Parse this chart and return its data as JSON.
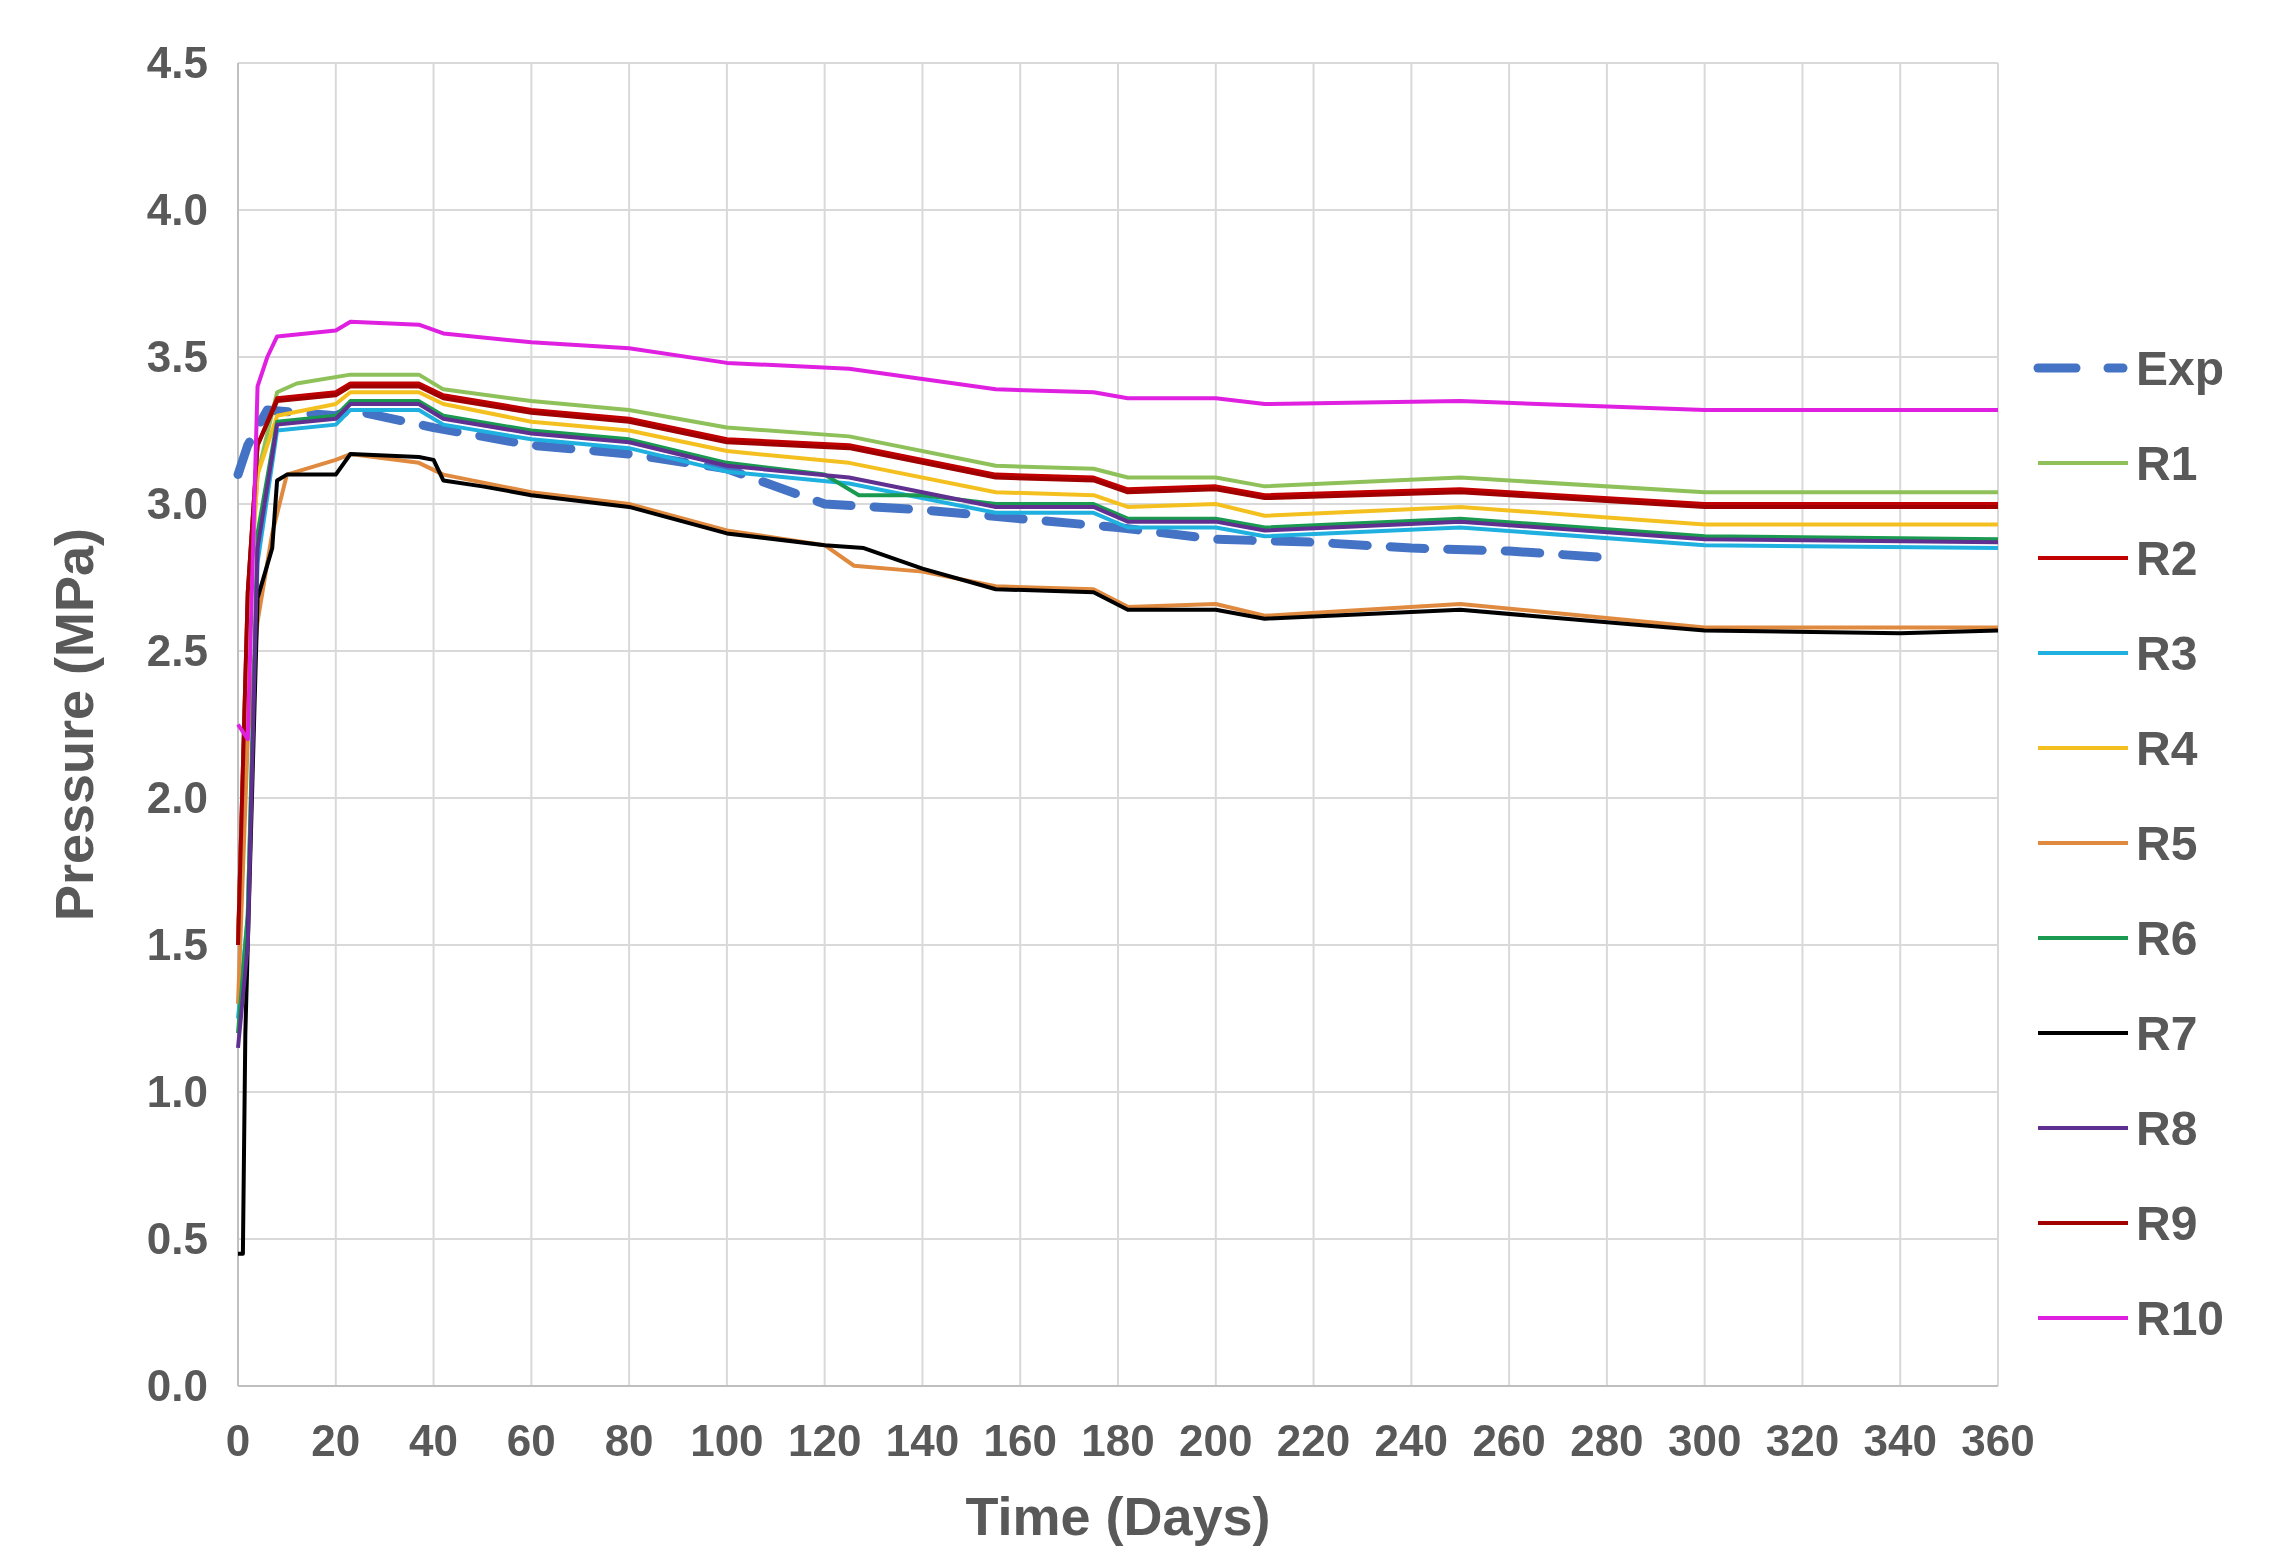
{
  "chart_data": {
    "type": "line",
    "xlabel": "Time (Days)",
    "ylabel": "Pressure (MPa)",
    "xlim": [
      0,
      360
    ],
    "xticks": [
      0,
      20,
      40,
      60,
      80,
      100,
      120,
      140,
      160,
      180,
      200,
      220,
      240,
      260,
      280,
      300,
      320,
      340,
      360
    ],
    "ylim": [
      0,
      4.5
    ],
    "yticks": [
      {
        "value": 0,
        "label": "0.0"
      },
      {
        "value": 0.5,
        "label": "0.5"
      },
      {
        "value": 1,
        "label": "1.0"
      },
      {
        "value": 1.5,
        "label": "1.5"
      },
      {
        "value": 2,
        "label": "2.0"
      },
      {
        "value": 2.5,
        "label": "2.5"
      },
      {
        "value": 3,
        "label": "3.0"
      },
      {
        "value": 3.5,
        "label": "3.5"
      },
      {
        "value": 4,
        "label": "4.0"
      },
      {
        "value": 4.5,
        "label": "4.5"
      }
    ],
    "grid": true,
    "legend": "right",
    "marker": "none",
    "series": [
      {
        "name": "Exp",
        "color": "#4472c4",
        "line_style": "dashed",
        "x": [
          0,
          2,
          6,
          20,
          23,
          40,
          60,
          80,
          100,
          120,
          140,
          160,
          180,
          200,
          220,
          240,
          260,
          278
        ],
        "values": [
          3.1,
          3.2,
          3.32,
          3.3,
          3.32,
          3.26,
          3.2,
          3.17,
          3.12,
          3.0,
          2.98,
          2.95,
          2.92,
          2.88,
          2.87,
          2.85,
          2.84,
          2.82
        ]
      },
      {
        "name": "R1",
        "color": "#8fc15a",
        "x": [
          0,
          2,
          4,
          8,
          12,
          23,
          37,
          42,
          60,
          80,
          100,
          125,
          155,
          175,
          182,
          200,
          210,
          250,
          300,
          360
        ],
        "values": [
          1.5,
          2.6,
          3.1,
          3.38,
          3.41,
          3.44,
          3.44,
          3.39,
          3.35,
          3.32,
          3.26,
          3.23,
          3.13,
          3.12,
          3.09,
          3.09,
          3.06,
          3.09,
          3.04,
          3.04
        ]
      },
      {
        "name": "R2",
        "color": "#c00000",
        "x": [
          0,
          2,
          4,
          8,
          20,
          23,
          37,
          42,
          60,
          80,
          100,
          125,
          155,
          175,
          182,
          200,
          210,
          250,
          300,
          360
        ],
        "values": [
          1.5,
          2.7,
          3.2,
          3.36,
          3.38,
          3.41,
          3.41,
          3.37,
          3.32,
          3.29,
          3.22,
          3.2,
          3.1,
          3.09,
          3.05,
          3.06,
          3.03,
          3.05,
          3.0,
          3.0
        ]
      },
      {
        "name": "R3",
        "color": "#1fb0e0",
        "x": [
          0,
          2,
          4,
          8,
          20,
          23,
          37,
          42,
          60,
          80,
          100,
          125,
          155,
          175,
          182,
          200,
          210,
          250,
          300,
          360
        ],
        "values": [
          1.25,
          1.6,
          2.8,
          3.25,
          3.27,
          3.32,
          3.32,
          3.27,
          3.22,
          3.19,
          3.11,
          3.07,
          2.97,
          2.97,
          2.92,
          2.92,
          2.89,
          2.92,
          2.86,
          2.85
        ]
      },
      {
        "name": "R4",
        "color": "#f4c020",
        "x": [
          0,
          2,
          4,
          8,
          20,
          23,
          37,
          42,
          60,
          80,
          100,
          125,
          155,
          175,
          182,
          200,
          210,
          250,
          300,
          360
        ],
        "values": [
          1.5,
          2.6,
          3.1,
          3.3,
          3.34,
          3.38,
          3.38,
          3.34,
          3.28,
          3.25,
          3.18,
          3.14,
          3.04,
          3.03,
          2.99,
          3.0,
          2.96,
          2.99,
          2.93,
          2.93
        ]
      },
      {
        "name": "R5",
        "color": "#e08a40",
        "x": [
          0,
          2,
          4,
          7,
          10,
          20,
          23,
          37,
          42,
          60,
          80,
          100,
          120,
          126,
          140,
          155,
          175,
          182,
          200,
          210,
          250,
          300,
          360
        ],
        "values": [
          1.3,
          2.2,
          2.6,
          2.9,
          3.1,
          3.15,
          3.17,
          3.14,
          3.1,
          3.04,
          3.0,
          2.91,
          2.86,
          2.79,
          2.77,
          2.72,
          2.71,
          2.65,
          2.66,
          2.62,
          2.66,
          2.58,
          2.58
        ]
      },
      {
        "name": "R6",
        "color": "#1a9a50",
        "x": [
          0,
          2,
          4,
          8,
          20,
          23,
          37,
          42,
          60,
          80,
          100,
          120,
          127,
          140,
          155,
          175,
          182,
          200,
          210,
          250,
          300,
          360
        ],
        "values": [
          1.2,
          1.6,
          2.9,
          3.28,
          3.3,
          3.35,
          3.35,
          3.3,
          3.25,
          3.22,
          3.14,
          3.1,
          3.03,
          3.03,
          3.0,
          3.0,
          2.95,
          2.95,
          2.92,
          2.95,
          2.89,
          2.88
        ]
      },
      {
        "name": "R7",
        "color": "#000000",
        "x": [
          0,
          1,
          1.5,
          4,
          7,
          8,
          10,
          20,
          23,
          37,
          40,
          42,
          50,
          60,
          80,
          100,
          120,
          128,
          140,
          155,
          175,
          182,
          200,
          210,
          250,
          300,
          340,
          360
        ],
        "values": [
          0.45,
          0.45,
          1.2,
          2.68,
          2.85,
          3.08,
          3.1,
          3.1,
          3.17,
          3.16,
          3.15,
          3.08,
          3.06,
          3.03,
          2.99,
          2.9,
          2.86,
          2.85,
          2.78,
          2.71,
          2.7,
          2.64,
          2.64,
          2.61,
          2.64,
          2.57,
          2.56,
          2.57
        ]
      },
      {
        "name": "R8",
        "color": "#603090",
        "x": [
          0,
          2,
          4,
          8,
          20,
          23,
          37,
          42,
          60,
          80,
          100,
          125,
          155,
          175,
          182,
          200,
          210,
          250,
          300,
          360
        ],
        "values": [
          1.15,
          1.5,
          2.85,
          3.27,
          3.29,
          3.34,
          3.34,
          3.29,
          3.24,
          3.21,
          3.13,
          3.09,
          2.99,
          2.99,
          2.94,
          2.94,
          2.91,
          2.94,
          2.88,
          2.87
        ]
      },
      {
        "name": "R9",
        "color": "#a00000",
        "x": [
          0,
          2,
          4,
          8,
          20,
          23,
          37,
          42,
          60,
          80,
          100,
          125,
          155,
          175,
          182,
          200,
          210,
          250,
          300,
          360
        ],
        "values": [
          1.5,
          2.7,
          3.2,
          3.35,
          3.37,
          3.4,
          3.4,
          3.36,
          3.31,
          3.28,
          3.21,
          3.19,
          3.09,
          3.08,
          3.04,
          3.05,
          3.02,
          3.04,
          2.99,
          2.99
        ]
      },
      {
        "name": "R10",
        "color": "#e020e0",
        "x": [
          0,
          2,
          4,
          6,
          8,
          20,
          23,
          37,
          42,
          60,
          80,
          100,
          125,
          155,
          175,
          182,
          200,
          210,
          250,
          300,
          360
        ],
        "values": [
          2.25,
          2.2,
          3.4,
          3.5,
          3.57,
          3.59,
          3.62,
          3.61,
          3.58,
          3.55,
          3.53,
          3.48,
          3.46,
          3.39,
          3.38,
          3.36,
          3.36,
          3.34,
          3.35,
          3.32,
          3.32
        ]
      }
    ]
  }
}
